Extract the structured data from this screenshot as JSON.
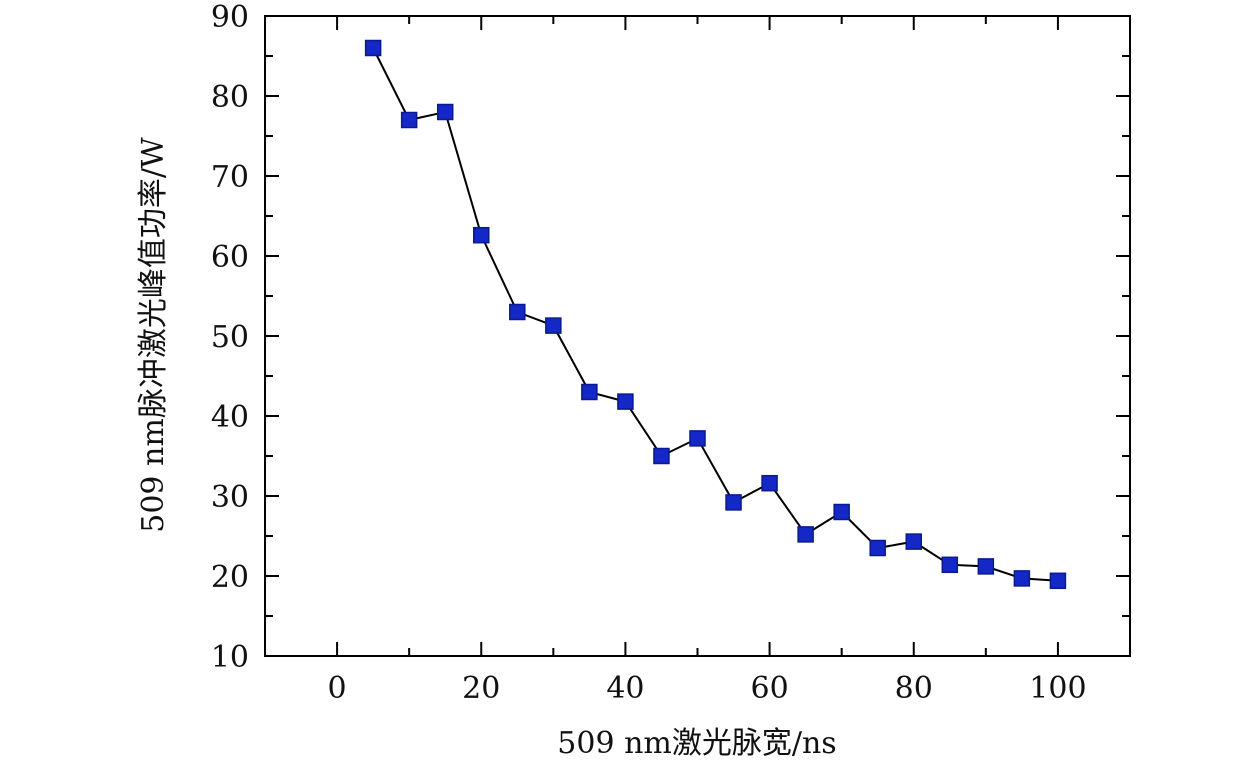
{
  "chart_data": {
    "type": "line",
    "title": "",
    "xlabel": "509 nm激光脉宽/ns",
    "ylabel": "509 nm脉冲激光峰值功率/W",
    "xlim": [
      -10,
      110
    ],
    "ylim": [
      10,
      90
    ],
    "x_ticks": [
      0,
      20,
      40,
      60,
      80,
      100
    ],
    "y_ticks": [
      10,
      20,
      30,
      40,
      50,
      60,
      70,
      80,
      90
    ],
    "grid": false,
    "legend": "none",
    "marker": "square",
    "colors": {
      "marker_fill": "#1428c8",
      "marker_stroke": "#0a1a8c",
      "line": "#000000"
    },
    "series": [
      {
        "x": [
          5,
          10,
          15,
          20,
          25,
          30,
          35,
          40,
          45,
          50,
          55,
          60,
          65,
          70,
          75,
          80,
          85,
          90,
          95,
          100
        ],
        "y": [
          86,
          77,
          78,
          62.6,
          53,
          51.3,
          43,
          41.8,
          35,
          37.2,
          29.2,
          31.6,
          25.2,
          28,
          23.5,
          24.3,
          21.4,
          21.2,
          19.7,
          19.4
        ]
      }
    ]
  }
}
